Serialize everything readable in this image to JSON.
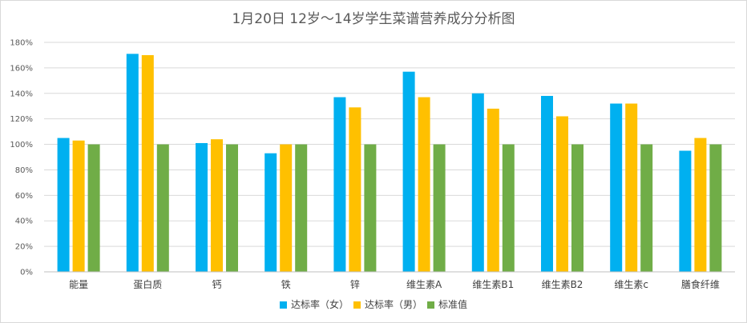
{
  "chart_data": {
    "type": "bar",
    "title": "1月20日 12岁～14岁学生菜谱营养成分分析图",
    "categories": [
      "能量",
      "蛋白质",
      "钙",
      "铁",
      "锌",
      "维生素A",
      "维生素B1",
      "维生素B2",
      "维生素c",
      "膳食纤维"
    ],
    "series": [
      {
        "name": "达标率（女）",
        "color": "#00b0f0",
        "values": [
          105,
          171,
          101,
          93,
          137,
          157,
          140,
          138,
          132,
          95
        ]
      },
      {
        "name": "达标率（男）",
        "color": "#ffc000",
        "values": [
          103,
          170,
          104,
          100,
          129,
          137,
          128,
          122,
          132,
          105
        ]
      },
      {
        "name": "标准值",
        "color": "#70ad47",
        "values": [
          100,
          100,
          100,
          100,
          100,
          100,
          100,
          100,
          100,
          100
        ]
      }
    ],
    "ylim": [
      0,
      180
    ],
    "ytick_step": 20,
    "y_unit": "%",
    "grid": true,
    "legend_position": "bottom"
  }
}
